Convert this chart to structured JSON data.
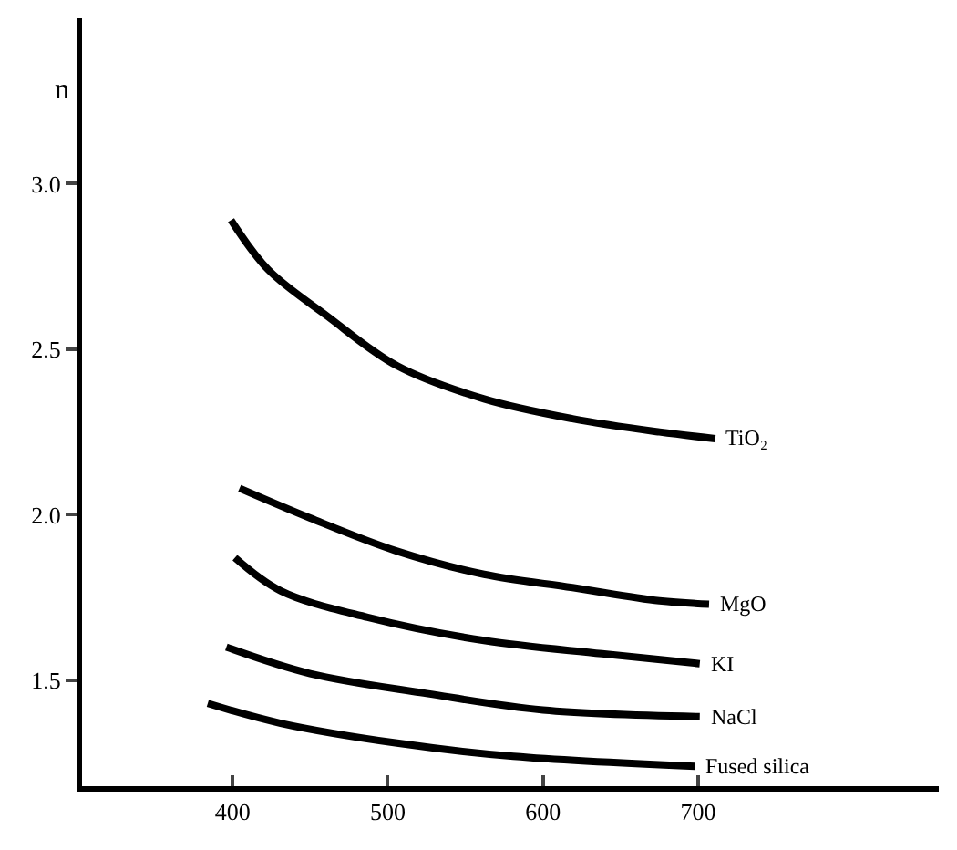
{
  "chart_data": {
    "type": "line",
    "ylabel": "n",
    "xlim": [
      303,
      855
    ],
    "ylim": [
      1.18,
      3.5
    ],
    "xticks": [
      400,
      500,
      600,
      700
    ],
    "yticks": [
      {
        "value": 1.5,
        "label": "1.5"
      },
      {
        "value": 2.0,
        "label": "2.0"
      },
      {
        "value": 2.5,
        "label": "2.5"
      },
      {
        "value": 3.0,
        "label": "3.0"
      }
    ],
    "legend": false,
    "marker": "none",
    "line_style": "solid",
    "series": [
      {
        "name": "TiO₂",
        "color": "#000000",
        "x": [
          399,
          423,
          461,
          506,
          562,
          619,
          675,
          711
        ],
        "values": [
          2.89,
          2.74,
          2.6,
          2.45,
          2.35,
          2.29,
          2.25,
          2.23
        ]
      },
      {
        "name": "MgO",
        "color": "#000000",
        "x": [
          404.5,
          450,
          506,
          562,
          619,
          675,
          707
        ],
        "values": [
          2.08,
          1.99,
          1.89,
          1.82,
          1.78,
          1.74,
          1.73
        ]
      },
      {
        "name": "KI",
        "color": "#000000",
        "x": [
          401.5,
          431,
          487,
          562,
          638,
          701
        ],
        "values": [
          1.87,
          1.77,
          1.69,
          1.62,
          1.58,
          1.55
        ]
      },
      {
        "name": "NaCl",
        "color": "#000000",
        "x": [
          396,
          450,
          525,
          600,
          701
        ],
        "values": [
          1.6,
          1.52,
          1.46,
          1.41,
          1.39
        ]
      },
      {
        "name": "Fused silica",
        "color": "#000000",
        "x": [
          384,
          431,
          506,
          581,
          698
        ],
        "values": [
          1.43,
          1.37,
          1.31,
          1.27,
          1.24
        ]
      }
    ]
  }
}
